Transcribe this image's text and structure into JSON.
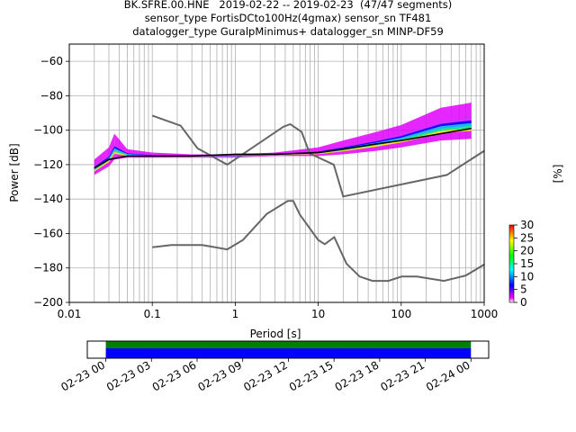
{
  "header": {
    "line1": "BK.SFRE.00.HNE   2019-02-22 -- 2019-02-23  (47/47 segments)",
    "line2": "sensor_type FortisDCto100Hz(4gmax) sensor_sn TF481",
    "line3": "datalogger_type GuralpMinimus+ datalogger_sn MINP-DF59"
  },
  "chart_data": [
    {
      "type": "heatmap",
      "title": "BK.SFRE.00.HNE   2019-02-22 -- 2019-02-23  (47/47 segments)",
      "xlabel": "Period [s]",
      "ylabel": "Power [dB]",
      "xscale": "log",
      "xlim": [
        0.01,
        1000
      ],
      "ylim": [
        -200,
        -50
      ],
      "grid": true,
      "x_tick_labels": [
        "0.01",
        "0.1",
        "1",
        "10",
        "100",
        "1000"
      ],
      "x_tick_values": [
        0.01,
        0.1,
        1,
        10,
        100,
        1000
      ],
      "y_ticks": [
        -60,
        -80,
        -100,
        -120,
        -140,
        -160,
        -180,
        -200
      ],
      "colorbar": {
        "label": "[%]",
        "range": [
          0,
          30
        ],
        "ticks": [
          0,
          5,
          10,
          15,
          20,
          25,
          30
        ],
        "colors": [
          "#ffffff",
          "#ff00ff",
          "#0000ff",
          "#00ffff",
          "#00ff00",
          "#ffff00",
          "#ff0000"
        ]
      },
      "mode_curve": {
        "x": [
          0.02,
          0.03,
          0.05,
          0.1,
          0.3,
          1,
          3,
          10,
          20,
          50,
          100,
          300,
          700
        ],
        "y": [
          -122,
          -117,
          -115,
          -115,
          -115,
          -114,
          -114,
          -113,
          -111,
          -108,
          -106,
          -102,
          -99
        ]
      },
      "psd_band": {
        "x": [
          0.02,
          0.03,
          0.035,
          0.05,
          0.1,
          0.3,
          1,
          3,
          10,
          20,
          50,
          100,
          300,
          700
        ],
        "low": [
          -126,
          -121,
          -117,
          -116,
          -116,
          -116,
          -116,
          -115,
          -115,
          -114,
          -112,
          -110,
          -106,
          -105
        ],
        "high": [
          -117,
          -110,
          -102,
          -111,
          -113,
          -114,
          -114,
          -113,
          -110,
          -106,
          -101,
          -97,
          -87,
          -84
        ]
      },
      "noise_models": [
        {
          "x": [
            0.1,
            0.22,
            0.35,
            0.8,
            3.8,
            4.6,
            6.3,
            7.9,
            15.4,
            20,
            354.8,
            1000
          ],
          "y": [
            -91.5,
            -97.4,
            -110.5,
            -120,
            -98,
            -96.5,
            -101,
            -113.5,
            -120,
            -138.5,
            -126,
            -112
          ]
        },
        {
          "x": [
            0.1,
            0.17,
            0.4,
            0.8,
            1.24,
            2.4,
            4.3,
            5,
            6,
            10,
            12,
            15.6,
            21.9,
            31.6,
            45,
            70,
            101,
            154,
            328,
            600,
            1000
          ],
          "y": [
            -168,
            -166.7,
            -166.7,
            -169.2,
            -163.7,
            -148.6,
            -141.1,
            -141.1,
            -149,
            -163.8,
            -166.2,
            -162.1,
            -177.5,
            -185,
            -187.5,
            -187.5,
            -185,
            -185,
            -187.5,
            -184.4,
            -178
          ]
        }
      ]
    },
    {
      "type": "bar",
      "title": "",
      "x_tick_labels": [
        "02-23 00",
        "02-23 03",
        "02-23 06",
        "02-23 09",
        "02-23 12",
        "02-23 15",
        "02-23 18",
        "02-23 21",
        "02-24 00"
      ],
      "data_coverage": {
        "start": "02-23 00",
        "end": "02-24 00",
        "color": "#0000ff"
      },
      "gap_coverage": {
        "start": "02-23 00",
        "end": "02-24 00",
        "color": "#008000"
      },
      "xlim": [
        "02-22 22:47",
        "02-24 01:10"
      ]
    }
  ]
}
